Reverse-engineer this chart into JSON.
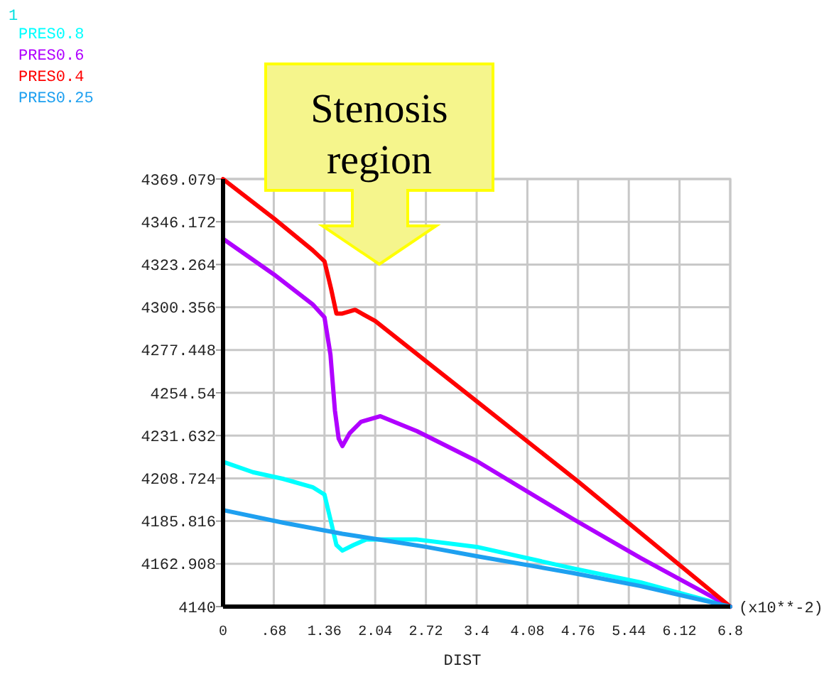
{
  "chart_data": {
    "type": "line",
    "xlabel": "DIST",
    "legend": "top left",
    "grid": true,
    "annotations": [
      "1",
      "(x10**-2)",
      "Stenosis region"
    ],
    "xlim": [
      0,
      6.8
    ],
    "ylim": [
      4140,
      4369.079
    ],
    "xticks": [
      0,
      {
        "value": 0.68,
        "label": ".68"
      },
      1.36,
      2.04,
      2.72,
      3.4,
      4.08,
      4.76,
      5.44,
      6.12,
      6.8
    ],
    "yticks": [
      4140,
      4162.908,
      4185.816,
      4208.724,
      4231.632,
      4254.54,
      4277.448,
      4300.356,
      4323.264,
      4346.172,
      4369.079
    ],
    "series": [
      {
        "name": "PRES0.8",
        "color": "#00ffff",
        "x": [
          0,
          0.4,
          0.8,
          1.2,
          1.36,
          1.45,
          1.52,
          1.6,
          1.75,
          1.92,
          2.59,
          3.4,
          4.69,
          5.6,
          6.8
        ],
        "values": [
          4217.6,
          4212,
          4208.5,
          4204,
          4200,
          4185,
          4173,
          4170,
          4173,
          4176,
          4176,
          4172,
          4160.5,
          4153,
          4140
        ]
      },
      {
        "name": "PRES0.6",
        "color": "#b000ff",
        "x": [
          0,
          0.68,
          1.2,
          1.36,
          1.44,
          1.5,
          1.55,
          1.6,
          1.7,
          1.85,
          2.11,
          2.6,
          3.4,
          4.69,
          5.6,
          6.8
        ],
        "values": [
          4337,
          4318,
          4302,
          4295,
          4275,
          4245,
          4230,
          4226,
          4233,
          4239,
          4242,
          4234,
          4218,
          4187,
          4166,
          4140
        ]
      },
      {
        "name": "PRES0.4",
        "color": "#ff0000",
        "x": [
          0,
          0.68,
          1.2,
          1.36,
          1.45,
          1.52,
          1.6,
          1.77,
          2.04,
          3.4,
          4.76,
          6.8
        ],
        "values": [
          4369,
          4348,
          4331,
          4325,
          4310,
          4297,
          4297,
          4299,
          4293,
          4250,
          4207,
          4140
        ]
      },
      {
        "name": "PRES0.25",
        "color": "#1ea0f0",
        "x": [
          0,
          0.8,
          1.6,
          2.72,
          3.4,
          4.69,
          5.6,
          6.8
        ],
        "values": [
          4191.7,
          4185,
          4179,
          4172,
          4167,
          4158,
          4151,
          4140
        ]
      }
    ]
  }
}
